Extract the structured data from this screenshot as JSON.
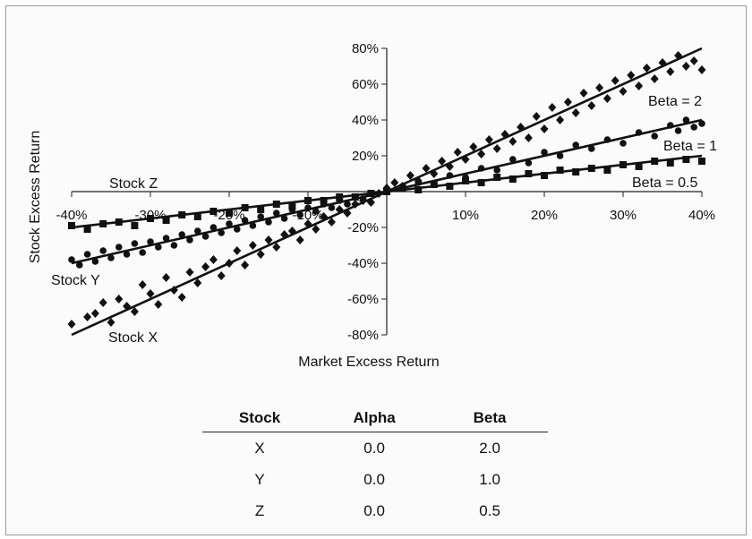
{
  "chart_data": {
    "type": "scatter",
    "title": "",
    "xlabel": "Market Excess Return",
    "ylabel": "Stock Excess Return",
    "xlim": [
      -0.4,
      0.4
    ],
    "ylim": [
      -0.8,
      0.8
    ],
    "x_ticks": [
      -0.4,
      -0.3,
      -0.2,
      -0.1,
      0.1,
      0.2,
      0.3,
      0.4
    ],
    "x_tick_labels": [
      "-40%",
      "-30%",
      "-20%",
      "-10%",
      "10%",
      "20%",
      "30%",
      "40%"
    ],
    "y_ticks": [
      0.8,
      0.6,
      0.4,
      0.2,
      -0.2,
      -0.4,
      -0.6,
      -0.8
    ],
    "y_tick_labels": [
      "80%",
      "60%",
      "40%",
      "20%",
      "-20%",
      "-40%",
      "-60%",
      "-80%"
    ],
    "series": [
      {
        "name": "Stock X",
        "line_label": "Beta = 2",
        "alpha": 0.0,
        "beta": 2.0,
        "marker": "diamond",
        "points": [
          [
            -0.4,
            -0.74
          ],
          [
            -0.38,
            -0.7
          ],
          [
            -0.37,
            -0.68
          ],
          [
            -0.36,
            -0.62
          ],
          [
            -0.35,
            -0.73
          ],
          [
            -0.34,
            -0.6
          ],
          [
            -0.33,
            -0.64
          ],
          [
            -0.32,
            -0.67
          ],
          [
            -0.31,
            -0.52
          ],
          [
            -0.3,
            -0.57
          ],
          [
            -0.29,
            -0.63
          ],
          [
            -0.28,
            -0.48
          ],
          [
            -0.27,
            -0.55
          ],
          [
            -0.26,
            -0.59
          ],
          [
            -0.25,
            -0.45
          ],
          [
            -0.24,
            -0.51
          ],
          [
            -0.23,
            -0.42
          ],
          [
            -0.22,
            -0.38
          ],
          [
            -0.21,
            -0.47
          ],
          [
            -0.2,
            -0.4
          ],
          [
            -0.19,
            -0.33
          ],
          [
            -0.18,
            -0.41
          ],
          [
            -0.17,
            -0.3
          ],
          [
            -0.16,
            -0.35
          ],
          [
            -0.15,
            -0.27
          ],
          [
            -0.14,
            -0.31
          ],
          [
            -0.13,
            -0.24
          ],
          [
            -0.12,
            -0.22
          ],
          [
            -0.11,
            -0.27
          ],
          [
            -0.1,
            -0.18
          ],
          [
            -0.09,
            -0.21
          ],
          [
            -0.08,
            -0.14
          ],
          [
            -0.07,
            -0.17
          ],
          [
            -0.06,
            -0.1
          ],
          [
            -0.05,
            -0.12
          ],
          [
            -0.04,
            -0.07
          ],
          [
            -0.03,
            -0.05
          ],
          [
            -0.02,
            -0.06
          ],
          [
            -0.01,
            -0.01
          ],
          [
            0.0,
            0.02
          ],
          [
            0.01,
            0.05
          ],
          [
            0.02,
            0.03
          ],
          [
            0.03,
            0.09
          ],
          [
            0.04,
            0.06
          ],
          [
            0.05,
            0.13
          ],
          [
            0.06,
            0.1
          ],
          [
            0.07,
            0.17
          ],
          [
            0.08,
            0.14
          ],
          [
            0.09,
            0.22
          ],
          [
            0.1,
            0.18
          ],
          [
            0.11,
            0.25
          ],
          [
            0.12,
            0.21
          ],
          [
            0.13,
            0.29
          ],
          [
            0.14,
            0.24
          ],
          [
            0.15,
            0.32
          ],
          [
            0.16,
            0.28
          ],
          [
            0.17,
            0.36
          ],
          [
            0.18,
            0.3
          ],
          [
            0.19,
            0.42
          ],
          [
            0.2,
            0.35
          ],
          [
            0.21,
            0.47
          ],
          [
            0.22,
            0.4
          ],
          [
            0.23,
            0.5
          ],
          [
            0.24,
            0.44
          ],
          [
            0.25,
            0.55
          ],
          [
            0.26,
            0.48
          ],
          [
            0.27,
            0.58
          ],
          [
            0.28,
            0.52
          ],
          [
            0.29,
            0.62
          ],
          [
            0.3,
            0.56
          ],
          [
            0.31,
            0.65
          ],
          [
            0.32,
            0.59
          ],
          [
            0.33,
            0.69
          ],
          [
            0.34,
            0.63
          ],
          [
            0.35,
            0.72
          ],
          [
            0.36,
            0.67
          ],
          [
            0.37,
            0.76
          ],
          [
            0.38,
            0.7
          ],
          [
            0.39,
            0.73
          ],
          [
            0.4,
            0.68
          ]
        ]
      },
      {
        "name": "Stock Y",
        "line_label": "Beta = 1",
        "alpha": 0.0,
        "beta": 1.0,
        "marker": "circle",
        "points": [
          [
            -0.4,
            -0.38
          ],
          [
            -0.39,
            -0.41
          ],
          [
            -0.38,
            -0.35
          ],
          [
            -0.37,
            -0.39
          ],
          [
            -0.36,
            -0.33
          ],
          [
            -0.35,
            -0.37
          ],
          [
            -0.34,
            -0.31
          ],
          [
            -0.33,
            -0.35
          ],
          [
            -0.32,
            -0.29
          ],
          [
            -0.31,
            -0.34
          ],
          [
            -0.3,
            -0.28
          ],
          [
            -0.29,
            -0.31
          ],
          [
            -0.28,
            -0.26
          ],
          [
            -0.27,
            -0.3
          ],
          [
            -0.26,
            -0.24
          ],
          [
            -0.25,
            -0.27
          ],
          [
            -0.24,
            -0.22
          ],
          [
            -0.23,
            -0.25
          ],
          [
            -0.22,
            -0.2
          ],
          [
            -0.21,
            -0.23
          ],
          [
            -0.2,
            -0.18
          ],
          [
            -0.19,
            -0.21
          ],
          [
            -0.18,
            -0.16
          ],
          [
            -0.17,
            -0.19
          ],
          [
            -0.16,
            -0.14
          ],
          [
            -0.15,
            -0.17
          ],
          [
            -0.14,
            -0.12
          ],
          [
            -0.13,
            -0.15
          ],
          [
            -0.12,
            -0.1
          ],
          [
            -0.11,
            -0.13
          ],
          [
            -0.1,
            -0.09
          ],
          [
            -0.09,
            -0.11
          ],
          [
            -0.08,
            -0.07
          ],
          [
            -0.07,
            -0.09
          ],
          [
            -0.06,
            -0.05
          ],
          [
            -0.05,
            -0.07
          ],
          [
            -0.04,
            -0.03
          ],
          [
            -0.03,
            -0.04
          ],
          [
            -0.02,
            -0.01
          ],
          [
            0.0,
            0.01
          ],
          [
            0.02,
            0.03
          ],
          [
            0.04,
            0.05
          ],
          [
            0.06,
            0.04
          ],
          [
            0.08,
            0.09
          ],
          [
            0.1,
            0.08
          ],
          [
            0.12,
            0.13
          ],
          [
            0.14,
            0.12
          ],
          [
            0.16,
            0.18
          ],
          [
            0.18,
            0.16
          ],
          [
            0.2,
            0.22
          ],
          [
            0.22,
            0.2
          ],
          [
            0.24,
            0.26
          ],
          [
            0.26,
            0.24
          ],
          [
            0.28,
            0.29
          ],
          [
            0.3,
            0.27
          ],
          [
            0.32,
            0.33
          ],
          [
            0.34,
            0.31
          ],
          [
            0.36,
            0.37
          ],
          [
            0.37,
            0.34
          ],
          [
            0.38,
            0.4
          ],
          [
            0.39,
            0.36
          ],
          [
            0.4,
            0.38
          ]
        ]
      },
      {
        "name": "Stock Z",
        "line_label": "Beta = 0.5",
        "alpha": 0.0,
        "beta": 0.5,
        "marker": "square",
        "points": [
          [
            -0.4,
            -0.19
          ],
          [
            -0.38,
            -0.21
          ],
          [
            -0.36,
            -0.18
          ],
          [
            -0.34,
            -0.17
          ],
          [
            -0.32,
            -0.19
          ],
          [
            -0.3,
            -0.15
          ],
          [
            -0.28,
            -0.16
          ],
          [
            -0.26,
            -0.13
          ],
          [
            -0.24,
            -0.14
          ],
          [
            -0.22,
            -0.11
          ],
          [
            -0.2,
            -0.12
          ],
          [
            -0.18,
            -0.09
          ],
          [
            -0.16,
            -0.1
          ],
          [
            -0.14,
            -0.07
          ],
          [
            -0.12,
            -0.08
          ],
          [
            -0.1,
            -0.05
          ],
          [
            -0.08,
            -0.05
          ],
          [
            -0.06,
            -0.03
          ],
          [
            -0.04,
            -0.03
          ],
          [
            -0.02,
            -0.01
          ],
          [
            0.0,
            0.0
          ],
          [
            0.02,
            0.02
          ],
          [
            0.04,
            0.01
          ],
          [
            0.06,
            0.04
          ],
          [
            0.08,
            0.03
          ],
          [
            0.1,
            0.06
          ],
          [
            0.12,
            0.05
          ],
          [
            0.14,
            0.08
          ],
          [
            0.16,
            0.07
          ],
          [
            0.18,
            0.1
          ],
          [
            0.2,
            0.09
          ],
          [
            0.22,
            0.12
          ],
          [
            0.24,
            0.11
          ],
          [
            0.26,
            0.13
          ],
          [
            0.28,
            0.12
          ],
          [
            0.3,
            0.15
          ],
          [
            0.32,
            0.14
          ],
          [
            0.34,
            0.17
          ],
          [
            0.36,
            0.16
          ],
          [
            0.38,
            0.18
          ],
          [
            0.4,
            0.17
          ]
        ]
      }
    ],
    "annotations": [
      "Stock Z",
      "Stock Y",
      "Stock X",
      "Beta = 2",
      "Beta = 1",
      "Beta = 0.5"
    ],
    "grid": false,
    "legend": "none"
  },
  "table": {
    "headers": [
      "Stock",
      "Alpha",
      "Beta"
    ],
    "rows": [
      [
        "X",
        "0.0",
        "2.0"
      ],
      [
        "Y",
        "0.0",
        "1.0"
      ],
      [
        "Z",
        "0.0",
        "0.5"
      ]
    ]
  }
}
